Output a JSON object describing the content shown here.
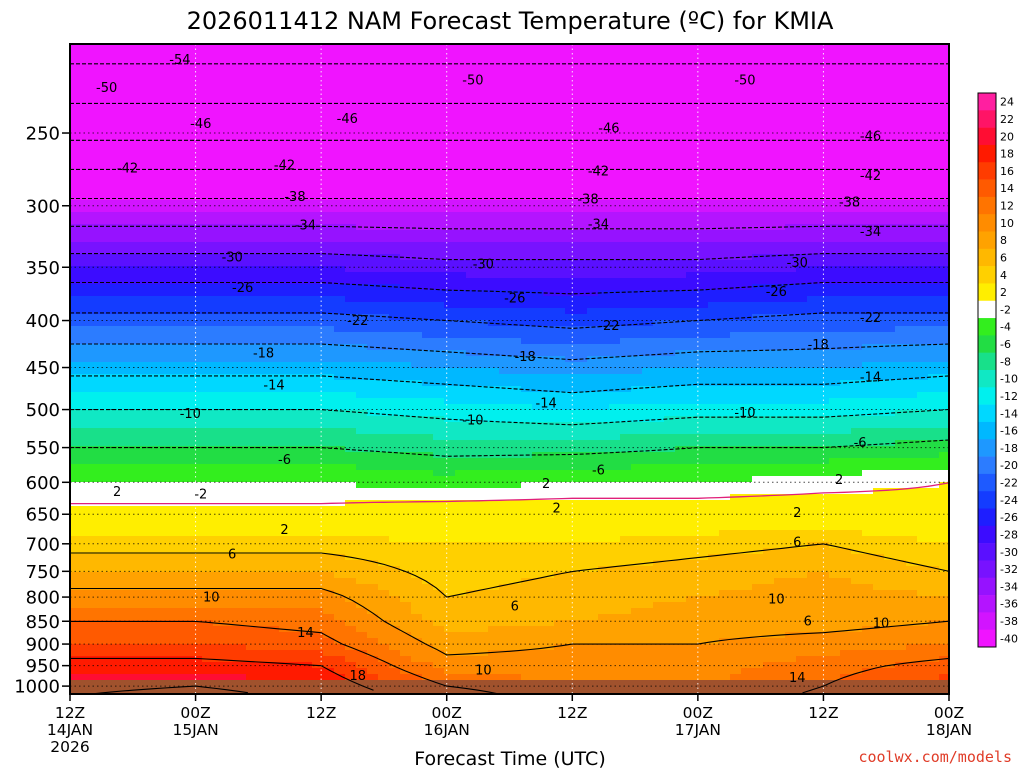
{
  "chart_data": {
    "type": "heatmap",
    "title": "2026011412 NAM Forecast Temperature (ºC) for KMIA",
    "xlabel": "Forecast Time (UTC)",
    "ylabel": "",
    "credit": "coolwx.com/models",
    "x_hours": [
      0,
      84
    ],
    "y_log_scale": true,
    "y_range_hPa": [
      1020,
      200
    ],
    "y_ticks": [
      {
        "p": 250,
        "label": "250"
      },
      {
        "p": 300,
        "label": "300"
      },
      {
        "p": 350,
        "label": "350"
      },
      {
        "p": 400,
        "label": "400"
      },
      {
        "p": 450,
        "label": "450"
      },
      {
        "p": 500,
        "label": "500"
      },
      {
        "p": 550,
        "label": "550"
      },
      {
        "p": 600,
        "label": "600"
      },
      {
        "p": 650,
        "label": "650"
      },
      {
        "p": 700,
        "label": "700"
      },
      {
        "p": 750,
        "label": "750"
      },
      {
        "p": 800,
        "label": "800"
      },
      {
        "p": 850,
        "label": "850"
      },
      {
        "p": 900,
        "label": "900"
      },
      {
        "p": 950,
        "label": "950"
      },
      {
        "p": 1000,
        "label": "1000"
      }
    ],
    "x_ticks": [
      {
        "h": 0,
        "line1": "12Z",
        "line2": "14JAN",
        "line3": "2026"
      },
      {
        "h": 12,
        "line1": "00Z",
        "line2": "15JAN",
        "line3": ""
      },
      {
        "h": 24,
        "line1": "12Z",
        "line2": "",
        "line3": ""
      },
      {
        "h": 36,
        "line1": "00Z",
        "line2": "16JAN",
        "line3": ""
      },
      {
        "h": 48,
        "line1": "12Z",
        "line2": "",
        "line3": ""
      },
      {
        "h": 60,
        "line1": "00Z",
        "line2": "17JAN",
        "line3": ""
      },
      {
        "h": 72,
        "line1": "12Z",
        "line2": "",
        "line3": ""
      },
      {
        "h": 84,
        "line1": "00Z",
        "line2": "18JAN",
        "line3": ""
      }
    ],
    "colorbar": {
      "labels": [
        "24",
        "22",
        "20",
        "18",
        "16",
        "14",
        "12",
        "10",
        "8",
        "6",
        "4",
        "2",
        "-2",
        "-4",
        "-6",
        "-8",
        "-10",
        "-12",
        "-14",
        "-16",
        "-18",
        "-20",
        "-22",
        "-24",
        "-26",
        "-28",
        "-30",
        "-32",
        "-34",
        "-36",
        "-38",
        "-40"
      ],
      "colors": [
        "#ff1fa0",
        "#ff1466",
        "#ff0d33",
        "#ff1a00",
        "#ff3c00",
        "#ff5a00",
        "#ff7400",
        "#ff8c00",
        "#ffa200",
        "#ffb800",
        "#ffd000",
        "#ffee00",
        "#ffffff",
        "#33ee1e",
        "#22dd44",
        "#18e08a",
        "#10e8c4",
        "#00f0ee",
        "#00d8ff",
        "#00b8ff",
        "#1e98ff",
        "#2c7cff",
        "#1e5aff",
        "#143cff",
        "#1e1eff",
        "#3c0cff",
        "#5a10ff",
        "#7812ff",
        "#9612ff",
        "#b414ff",
        "#d214ff",
        "#f014ff"
      ]
    },
    "profiles": {
      "hours": [
        0,
        12,
        24,
        36,
        48,
        60,
        72,
        84
      ],
      "pressure_hPa": [
        1000,
        950,
        900,
        850,
        800,
        750,
        700,
        650,
        600,
        550,
        500,
        450,
        400,
        350,
        300,
        250,
        200
      ],
      "temperature_C": [
        [
          21,
          19,
          16,
          14,
          11,
          8,
          5,
          1,
          -2,
          -6,
          -10,
          -15,
          -21,
          -28,
          -37,
          -47,
          -56
        ],
        [
          22,
          19,
          16,
          14,
          11,
          8,
          5,
          1,
          -2,
          -6,
          -10,
          -15,
          -21,
          -28,
          -37,
          -47,
          -56
        ],
        [
          20,
          18,
          15,
          13,
          11,
          8,
          5,
          1,
          -2,
          -6,
          -10,
          -15,
          -21,
          -28,
          -37,
          -47,
          -56
        ],
        [
          14,
          11,
          9,
          7,
          6,
          5,
          4,
          2,
          -3,
          -7,
          -11,
          -16,
          -22,
          -29,
          -37,
          -47,
          -56
        ],
        [
          12,
          11,
          10,
          8,
          7,
          6,
          4,
          2,
          -2,
          -7,
          -12,
          -17,
          -23,
          -29,
          -37,
          -47,
          -56
        ],
        [
          12,
          11,
          10,
          9,
          8,
          7,
          5,
          2,
          -2,
          -6,
          -11,
          -16,
          -22,
          -29,
          -37,
          -47,
          -56
        ],
        [
          14,
          13,
          11,
          9,
          9,
          8,
          6,
          2,
          -1,
          -6,
          -11,
          -16,
          -21,
          -28,
          -37,
          -47,
          -56
        ],
        [
          17,
          15,
          12,
          10,
          8,
          6,
          4,
          1,
          0,
          -5,
          -10,
          -15,
          -21,
          -28,
          -37,
          -47,
          -56
        ]
      ]
    },
    "contour_labels": [
      {
        "h": 10.5,
        "p": 208,
        "text": "-54"
      },
      {
        "h": 3.5,
        "p": 223,
        "text": "-50"
      },
      {
        "h": 38.5,
        "p": 219,
        "text": "-50"
      },
      {
        "h": 64.5,
        "p": 219,
        "text": "-50"
      },
      {
        "h": 12.5,
        "p": 244,
        "text": "-46"
      },
      {
        "h": 26.5,
        "p": 241,
        "text": "-46"
      },
      {
        "h": 51.5,
        "p": 247,
        "text": "-46"
      },
      {
        "h": 76.5,
        "p": 252,
        "text": "-46"
      },
      {
        "h": 5.5,
        "p": 273,
        "text": "-42"
      },
      {
        "h": 20.5,
        "p": 271,
        "text": "-42"
      },
      {
        "h": 50.5,
        "p": 275,
        "text": "-42"
      },
      {
        "h": 76.5,
        "p": 278,
        "text": "-42"
      },
      {
        "h": 21.5,
        "p": 293,
        "text": "-38"
      },
      {
        "h": 49.5,
        "p": 295,
        "text": "-38"
      },
      {
        "h": 74.5,
        "p": 297,
        "text": "-38"
      },
      {
        "h": 22.5,
        "p": 315,
        "text": "-34"
      },
      {
        "h": 50.5,
        "p": 314,
        "text": "-34"
      },
      {
        "h": 76.5,
        "p": 320,
        "text": "-34"
      },
      {
        "h": 15.5,
        "p": 341,
        "text": "-30"
      },
      {
        "h": 39.5,
        "p": 347,
        "text": "-30"
      },
      {
        "h": 69.5,
        "p": 346,
        "text": "-30"
      },
      {
        "h": 16.5,
        "p": 368,
        "text": "-26"
      },
      {
        "h": 42.5,
        "p": 378,
        "text": "-26"
      },
      {
        "h": 67.5,
        "p": 372,
        "text": "-26"
      },
      {
        "h": 27.5,
        "p": 400,
        "text": "-22"
      },
      {
        "h": 51.5,
        "p": 405,
        "text": "-22"
      },
      {
        "h": 76.5,
        "p": 397,
        "text": "-22"
      },
      {
        "h": 18.5,
        "p": 434,
        "text": "-18"
      },
      {
        "h": 43.5,
        "p": 438,
        "text": "-18"
      },
      {
        "h": 71.5,
        "p": 425,
        "text": "-18"
      },
      {
        "h": 19.5,
        "p": 470,
        "text": "-14"
      },
      {
        "h": 45.5,
        "p": 492,
        "text": "-14"
      },
      {
        "h": 76.5,
        "p": 461,
        "text": "-14"
      },
      {
        "h": 11.5,
        "p": 505,
        "text": "-10"
      },
      {
        "h": 38.5,
        "p": 513,
        "text": "-10"
      },
      {
        "h": 64.5,
        "p": 504,
        "text": "-10"
      },
      {
        "h": 20.5,
        "p": 567,
        "text": "-6"
      },
      {
        "h": 50.5,
        "p": 582,
        "text": "-6"
      },
      {
        "h": 75.5,
        "p": 543,
        "text": "-6"
      },
      {
        "h": 12.5,
        "p": 618,
        "text": "-2"
      },
      {
        "h": 45.5,
        "p": 602,
        "text": "2"
      },
      {
        "h": 73.5,
        "p": 596,
        "text": "2"
      },
      {
        "h": 4.5,
        "p": 614,
        "text": "2"
      },
      {
        "h": 46.5,
        "p": 640,
        "text": "2"
      },
      {
        "h": 69.5,
        "p": 647,
        "text": "2"
      },
      {
        "h": 20.5,
        "p": 675,
        "text": "2"
      },
      {
        "h": 15.5,
        "p": 718,
        "text": "6"
      },
      {
        "h": 42.5,
        "p": 818,
        "text": "6"
      },
      {
        "h": 69.5,
        "p": 697,
        "text": "6"
      },
      {
        "h": 70.5,
        "p": 849,
        "text": "6"
      },
      {
        "h": 13.5,
        "p": 800,
        "text": "10"
      },
      {
        "h": 67.5,
        "p": 804,
        "text": "10"
      },
      {
        "h": 77.5,
        "p": 854,
        "text": "10"
      },
      {
        "h": 39.5,
        "p": 960,
        "text": "10"
      },
      {
        "h": 22.5,
        "p": 874,
        "text": "14"
      },
      {
        "h": 69.5,
        "p": 979,
        "text": "14"
      },
      {
        "h": 27.5,
        "p": 974,
        "text": "18"
      }
    ]
  }
}
